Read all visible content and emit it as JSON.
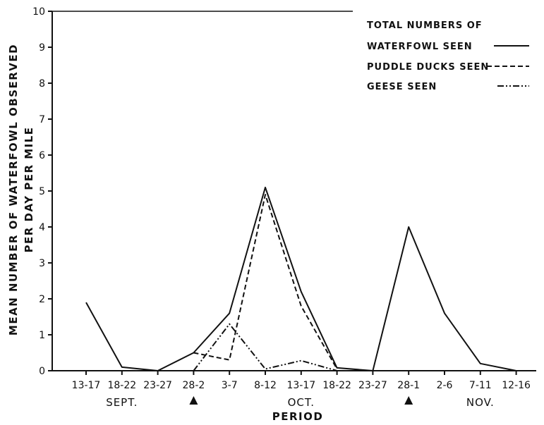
{
  "chart_data": {
    "type": "line",
    "categories": [
      "13-17",
      "18-22",
      "23-27",
      "28-2",
      "3-7",
      "8-12",
      "13-17",
      "18-22",
      "23-27",
      "28-1",
      "2-6",
      "7-11",
      "12-16"
    ],
    "month_labels": [
      {
        "text": "SEPT.",
        "center_index": 1
      },
      {
        "text": "OCT.",
        "center_index": 6
      },
      {
        "text": "NOV.",
        "center_index": 11
      }
    ],
    "markers": [
      {
        "category_index": 3,
        "symbol": "▲"
      },
      {
        "category_index": 9,
        "symbol": "▲"
      }
    ],
    "yticks": [
      0,
      1,
      2,
      3,
      4,
      5,
      6,
      7,
      8,
      9,
      10
    ],
    "ylim": [
      0,
      10
    ],
    "xlabel": "PERIOD",
    "ylabel_lines": [
      "MEAN NUMBER OF WATERFOWL OBSERVED",
      "PER DAY PER MILE"
    ],
    "legend_placement": "top-right",
    "legend": {
      "heading": "TOTAL NUMBERS OF"
    },
    "series": [
      {
        "name": "WATERFOWL SEEN",
        "dash": "solid",
        "values": [
          1.9,
          0.1,
          0.0,
          0.5,
          1.6,
          5.1,
          2.2,
          0.08,
          0.0,
          4.0,
          1.6,
          0.2,
          0.0
        ]
      },
      {
        "name": "PUDDLE DUCKS SEEN",
        "dash": "dashed",
        "values": [
          null,
          null,
          null,
          0.5,
          0.3,
          4.9,
          1.8,
          0.05,
          null,
          null,
          null,
          null,
          null
        ]
      },
      {
        "name": "GEESE SEEN",
        "dash": "dashdotdot",
        "values": [
          null,
          null,
          null,
          0.0,
          1.3,
          0.05,
          0.28,
          0.0,
          null,
          null,
          null,
          null,
          null
        ]
      }
    ]
  }
}
